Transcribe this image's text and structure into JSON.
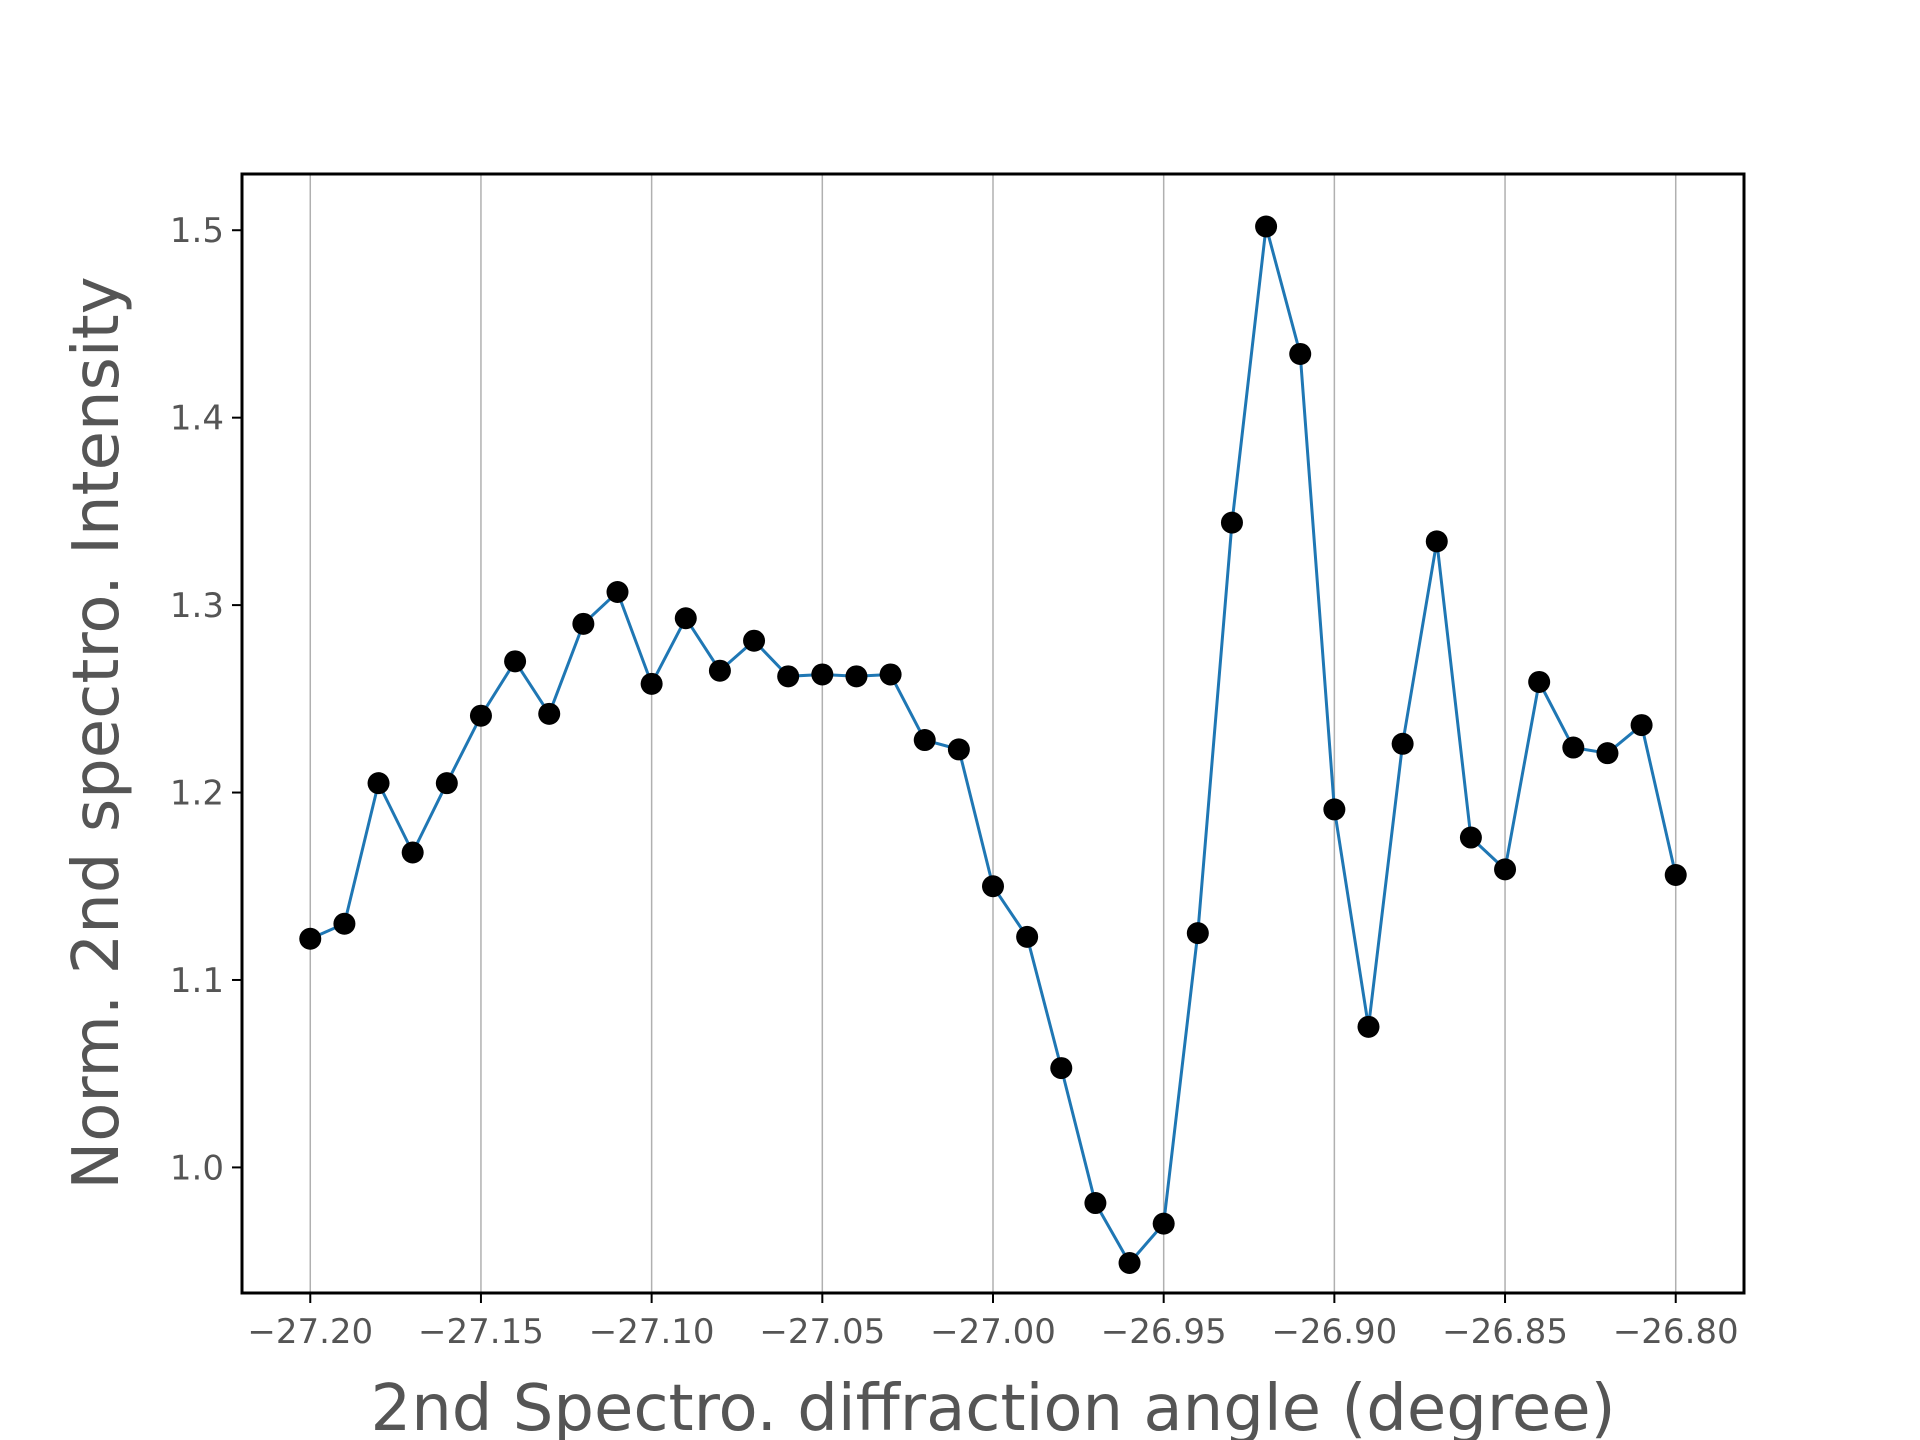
{
  "chart_data": {
    "type": "line",
    "title": "",
    "xlabel": "2nd Spectro. diffraction angle (degree)",
    "ylabel": "Norm. 2nd spectro. Intensity",
    "xlim": [
      -27.22,
      -26.78
    ],
    "ylim": [
      0.933,
      1.53
    ],
    "grid": "vertical",
    "line_color": "#1f77b4",
    "marker_color": "#000000",
    "x_ticks": [
      -27.2,
      -27.15,
      -27.1,
      -27.05,
      -27.0,
      -26.95,
      -26.9,
      -26.85,
      -26.8
    ],
    "x_tick_labels": [
      "−27.20",
      "−27.15",
      "−27.10",
      "−27.05",
      "−27.00",
      "−26.95",
      "−26.90",
      "−26.85",
      "−26.80"
    ],
    "y_ticks": [
      1.0,
      1.1,
      1.2,
      1.3,
      1.4,
      1.5
    ],
    "y_tick_labels": [
      "1.0",
      "1.1",
      "1.2",
      "1.3",
      "1.4",
      "1.5"
    ],
    "series": [
      {
        "x": [
          -27.2,
          -27.19,
          -27.18,
          -27.17,
          -27.16,
          -27.15,
          -27.14,
          -27.13,
          -27.12,
          -27.11,
          -27.1,
          -27.09,
          -27.08,
          -27.07,
          -27.06,
          -27.05,
          -27.04,
          -27.03,
          -27.02,
          -27.01,
          -27.0,
          -26.99,
          -26.98,
          -26.97,
          -26.96,
          -26.95,
          -26.94,
          -26.93,
          -26.92,
          -26.91,
          -26.9,
          -26.89,
          -26.88,
          -26.87,
          -26.86,
          -26.85,
          -26.84,
          -26.83,
          -26.82,
          -26.81,
          -26.8
        ],
        "values": [
          1.122,
          1.13,
          1.205,
          1.168,
          1.205,
          1.241,
          1.27,
          1.242,
          1.29,
          1.307,
          1.258,
          1.293,
          1.265,
          1.281,
          1.262,
          1.263,
          1.262,
          1.263,
          1.228,
          1.223,
          1.15,
          1.123,
          1.053,
          0.981,
          0.949,
          0.97,
          1.125,
          1.344,
          1.502,
          1.434,
          1.191,
          1.075,
          1.226,
          1.334,
          1.176,
          1.159,
          1.259,
          1.224,
          1.221,
          1.236,
          1.156
        ]
      }
    ]
  }
}
